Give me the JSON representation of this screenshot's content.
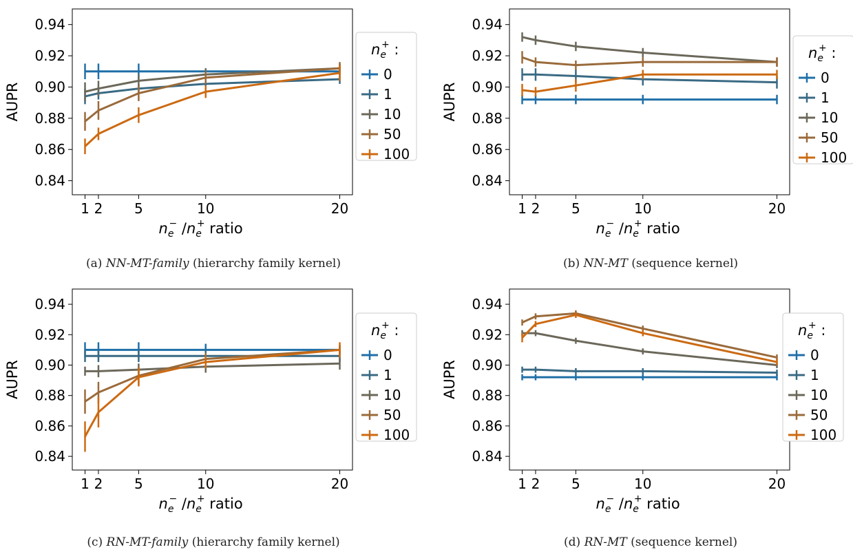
{
  "chart_data": [
    {
      "type": "line",
      "caption_label": "(a)",
      "caption_name": "NN-MT-family",
      "caption_rest": "(hierarchy family kernel)",
      "ylabel": "AUPR",
      "xlabel_text": "ratio",
      "legend_title": "n_e^+ :",
      "x": [
        1,
        2,
        5,
        10,
        20
      ],
      "xticks": [
        "1",
        "2",
        "5",
        "10",
        "20"
      ],
      "yticks": [
        "0.84",
        "0.86",
        "0.88",
        "0.90",
        "0.92",
        "0.94"
      ],
      "ylim": [
        0.831,
        0.95
      ],
      "series": [
        {
          "name": "0",
          "values": [
            0.91,
            0.91,
            0.91,
            0.91,
            0.91
          ],
          "err": [
            0.005,
            0.005,
            0.005,
            0.002,
            0.002
          ]
        },
        {
          "name": "1",
          "values": [
            0.894,
            0.896,
            0.899,
            0.902,
            0.905
          ],
          "err": [
            0.005,
            0.004,
            0.003,
            0.003,
            0.003
          ]
        },
        {
          "name": "10",
          "values": [
            0.897,
            0.899,
            0.904,
            0.908,
            0.912
          ],
          "err": [
            0.006,
            0.005,
            0.004,
            0.004,
            0.003
          ]
        },
        {
          "name": "50",
          "values": [
            0.878,
            0.885,
            0.896,
            0.906,
            0.912
          ],
          "err": [
            0.006,
            0.006,
            0.005,
            0.004,
            0.004
          ]
        },
        {
          "name": "100",
          "values": [
            0.862,
            0.87,
            0.882,
            0.897,
            0.909
          ],
          "err": [
            0.005,
            0.004,
            0.005,
            0.004,
            0.005
          ]
        }
      ]
    },
    {
      "type": "line",
      "caption_label": "(b)",
      "caption_name": "NN-MT",
      "caption_rest": "(sequence kernel)",
      "ylabel": "AUPR",
      "xlabel_text": "ratio",
      "legend_title": "n_e^+ :",
      "x": [
        1,
        2,
        5,
        10,
        20
      ],
      "xticks": [
        "1",
        "2",
        "5",
        "10",
        "20"
      ],
      "yticks": [
        "0.84",
        "0.86",
        "0.88",
        "0.90",
        "0.92",
        "0.94"
      ],
      "ylim": [
        0.831,
        0.95
      ],
      "series": [
        {
          "name": "0",
          "values": [
            0.892,
            0.892,
            0.892,
            0.892,
            0.892
          ],
          "err": [
            0.003,
            0.003,
            0.003,
            0.003,
            0.003
          ]
        },
        {
          "name": "1",
          "values": [
            0.908,
            0.908,
            0.907,
            0.905,
            0.903
          ],
          "err": [
            0.004,
            0.004,
            0.004,
            0.004,
            0.004
          ]
        },
        {
          "name": "10",
          "values": [
            0.932,
            0.93,
            0.926,
            0.922,
            0.916
          ],
          "err": [
            0.003,
            0.003,
            0.003,
            0.003,
            0.003
          ]
        },
        {
          "name": "50",
          "values": [
            0.919,
            0.916,
            0.914,
            0.916,
            0.916
          ],
          "err": [
            0.004,
            0.003,
            0.003,
            0.003,
            0.003
          ]
        },
        {
          "name": "100",
          "values": [
            0.898,
            0.897,
            0.901,
            0.908,
            0.908
          ],
          "err": [
            0.004,
            0.003,
            0.004,
            0.003,
            0.003
          ]
        }
      ]
    },
    {
      "type": "line",
      "caption_label": "(c)",
      "caption_name": "RN-MT-family",
      "caption_rest": "(hierarchy family kernel)",
      "ylabel": "AUPR",
      "xlabel_text": "ratio",
      "legend_title": "n_e^+ :",
      "x": [
        1,
        2,
        5,
        10,
        20
      ],
      "xticks": [
        "1",
        "2",
        "5",
        "10",
        "20"
      ],
      "yticks": [
        "0.84",
        "0.86",
        "0.88",
        "0.90",
        "0.92",
        "0.94"
      ],
      "ylim": [
        0.831,
        0.95
      ],
      "series": [
        {
          "name": "0",
          "values": [
            0.91,
            0.91,
            0.91,
            0.91,
            0.91
          ],
          "err": [
            0.005,
            0.005,
            0.005,
            0.004,
            0.003
          ]
        },
        {
          "name": "1",
          "values": [
            0.906,
            0.906,
            0.906,
            0.906,
            0.906
          ],
          "err": [
            0.004,
            0.004,
            0.004,
            0.004,
            0.004
          ]
        },
        {
          "name": "10",
          "values": [
            0.896,
            0.896,
            0.897,
            0.899,
            0.901
          ],
          "err": [
            0.003,
            0.004,
            0.004,
            0.004,
            0.004
          ]
        },
        {
          "name": "50",
          "values": [
            0.876,
            0.882,
            0.893,
            0.904,
            0.91
          ],
          "err": [
            0.008,
            0.007,
            0.006,
            0.004,
            0.003
          ]
        },
        {
          "name": "100",
          "values": [
            0.853,
            0.869,
            0.892,
            0.902,
            0.91
          ],
          "err": [
            0.01,
            0.01,
            0.006,
            0.004,
            0.005
          ]
        }
      ]
    },
    {
      "type": "line",
      "caption_label": "(d)",
      "caption_name": "RN-MT",
      "caption_rest": "(sequence kernel)",
      "ylabel": "AUPR",
      "xlabel_text": "ratio",
      "legend_title": "n_e^+ :",
      "x": [
        1,
        2,
        5,
        10,
        20
      ],
      "xticks": [
        "1",
        "2",
        "5",
        "10",
        "20"
      ],
      "yticks": [
        "0.84",
        "0.86",
        "0.88",
        "0.90",
        "0.92",
        "0.94"
      ],
      "ylim": [
        0.831,
        0.95
      ],
      "series": [
        {
          "name": "0",
          "values": [
            0.892,
            0.892,
            0.892,
            0.892,
            0.892
          ],
          "err": [
            0.002,
            0.002,
            0.002,
            0.002,
            0.002
          ]
        },
        {
          "name": "1",
          "values": [
            0.897,
            0.897,
            0.896,
            0.896,
            0.895
          ],
          "err": [
            0.002,
            0.002,
            0.002,
            0.002,
            0.002
          ]
        },
        {
          "name": "10",
          "values": [
            0.921,
            0.921,
            0.916,
            0.909,
            0.9
          ],
          "err": [
            0.002,
            0.002,
            0.002,
            0.002,
            0.002
          ]
        },
        {
          "name": "50",
          "values": [
            0.928,
            0.932,
            0.934,
            0.924,
            0.905
          ],
          "err": [
            0.002,
            0.002,
            0.002,
            0.002,
            0.002
          ]
        },
        {
          "name": "100",
          "values": [
            0.918,
            0.927,
            0.933,
            0.921,
            0.902
          ],
          "err": [
            0.003,
            0.002,
            0.002,
            0.002,
            0.002
          ]
        }
      ]
    }
  ],
  "colors": [
    "#1f6fa8",
    "#3a6a84",
    "#6b685a",
    "#9a6a3a",
    "#cc6a12"
  ],
  "xlabel_tex": {
    "minus": "−",
    "plus": "+",
    "sym": "n",
    "sub": "e"
  }
}
